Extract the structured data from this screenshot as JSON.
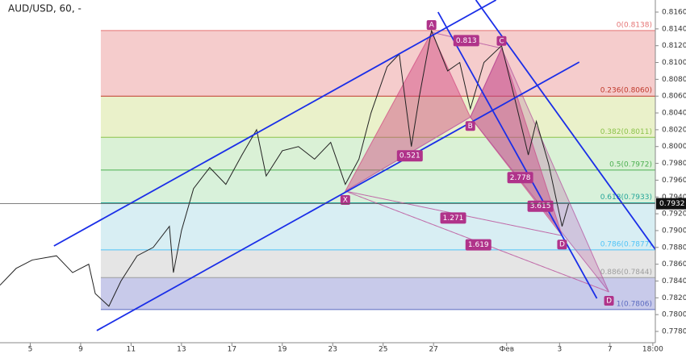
{
  "chart_data": {
    "type": "line",
    "title": "AUD/USD, 60, -",
    "x": [
      0,
      0.32,
      0.64,
      1.12,
      1.44,
      1.76,
      1.89,
      2.16,
      2.4,
      2.72,
      3.04,
      3.36,
      3.44,
      3.6,
      3.84,
      4.16,
      4.48,
      4.8,
      5.09,
      5.28,
      5.6,
      5.92,
      6.24,
      6.56,
      6.85,
      7.12,
      7.36,
      7.68,
      7.92,
      8.16,
      8.32,
      8.56,
      8.88,
      9.12,
      9.33,
      9.6,
      9.95,
      10.24,
      10.48,
      10.64,
      10.88,
      11.15,
      11.28
    ],
    "series": [
      {
        "name": "AUD/USD",
        "color": "#222222",
        "values": [
          0.7835,
          0.7855,
          0.7865,
          0.787,
          0.785,
          0.786,
          0.7825,
          0.781,
          0.784,
          0.787,
          0.788,
          0.7905,
          0.785,
          0.79,
          0.795,
          0.7975,
          0.7955,
          0.799,
          0.802,
          0.7965,
          0.7995,
          0.8,
          0.7985,
          0.8005,
          0.7955,
          0.7985,
          0.804,
          0.8095,
          0.811,
          0.8,
          0.806,
          0.8138,
          0.809,
          0.81,
          0.8045,
          0.81,
          0.812,
          0.805,
          0.799,
          0.803,
          0.798,
          0.7905,
          0.7932
        ]
      }
    ],
    "xlim": [
      0,
      13
    ],
    "ylim": [
      0.778,
      0.816
    ],
    "xticks": [
      {
        "value": 0.6,
        "label": "5"
      },
      {
        "value": 1.6,
        "label": "9"
      },
      {
        "value": 2.6,
        "label": "11"
      },
      {
        "value": 3.6,
        "label": "13"
      },
      {
        "value": 4.6,
        "label": "17"
      },
      {
        "value": 5.6,
        "label": "19"
      },
      {
        "value": 6.6,
        "label": "23"
      },
      {
        "value": 7.6,
        "label": "25"
      },
      {
        "value": 8.6,
        "label": "27"
      },
      {
        "value": 10.05,
        "label": "Фев"
      },
      {
        "value": 11.1,
        "label": "3"
      },
      {
        "value": 12.1,
        "label": "7"
      },
      {
        "value": 12.95,
        "label": "18:00"
      }
    ],
    "yticks": [
      {
        "value": 0.778,
        "label": "0.7780"
      },
      {
        "value": 0.78,
        "label": "0.7800"
      },
      {
        "value": 0.782,
        "label": "0.7820"
      },
      {
        "value": 0.784,
        "label": "0.7840"
      },
      {
        "value": 0.786,
        "label": "0.7860"
      },
      {
        "value": 0.788,
        "label": "0.7880"
      },
      {
        "value": 0.79,
        "label": "0.7900"
      },
      {
        "value": 0.792,
        "label": "0.7920"
      },
      {
        "value": 0.794,
        "label": "0.7940"
      },
      {
        "value": 0.796,
        "label": "0.7960"
      },
      {
        "value": 0.798,
        "label": "0.7980"
      },
      {
        "value": 0.8,
        "label": "0.8000"
      },
      {
        "value": 0.802,
        "label": "0.8020"
      },
      {
        "value": 0.804,
        "label": "0.8040"
      },
      {
        "value": 0.806,
        "label": "0.8060"
      },
      {
        "value": 0.808,
        "label": "0.8080"
      },
      {
        "value": 0.81,
        "label": "0.8100"
      },
      {
        "value": 0.812,
        "label": "0.8120"
      },
      {
        "value": 0.814,
        "label": "0.8140"
      },
      {
        "value": 0.816,
        "label": "0.8160"
      }
    ],
    "last_price": {
      "value": 0.7932,
      "label": "0.7932"
    },
    "fib_start": 2,
    "fib_levels": [
      {
        "label": "0(0.8138)",
        "value": 0.8138,
        "color": "#e57373"
      },
      {
        "label": "0.236(0.8060)",
        "value": 0.806,
        "color": "#c0392b"
      },
      {
        "label": "0.382(0.8011)",
        "value": 0.8011,
        "color": "#8bc34a"
      },
      {
        "label": "0.5(0.7972)",
        "value": 0.7972,
        "color": "#4caf50"
      },
      {
        "label": "0.618(0.7933)",
        "value": 0.7933,
        "color": "#26a69a"
      },
      {
        "label": "0.786(0.7877)",
        "value": 0.7877,
        "color": "#4fc3f7"
      },
      {
        "label": "0.886(0.7844)",
        "value": 0.7844,
        "color": "#9e9e9e"
      },
      {
        "label": "1(0.7806)",
        "value": 0.7806,
        "color": "#5c6bc0"
      }
    ],
    "band_colors": [
      "#f4c7c7",
      "#e8efc4",
      "#d6efd1",
      "#d4efd6",
      "#d4ecf2",
      "#e2e2e2",
      "#c2c4e8"
    ],
    "trendlines": [
      {
        "x": [
          1.07,
          9.84
        ],
        "y": [
          0.78817,
          0.81744
        ]
      },
      {
        "x": [
          1.92,
          11.49
        ],
        "y": [
          0.7781,
          0.81005
        ]
      },
      {
        "x": [
          8.69,
          11.84
        ],
        "y": [
          0.816,
          0.78193
        ]
      },
      {
        "x": [
          9.44,
          13.41
        ],
        "y": [
          0.81744,
          0.78434
        ]
      }
    ],
    "pattern_points": [
      {
        "name": "X",
        "x": 6.85,
        "y": 0.7947
      },
      {
        "name": "A",
        "x": 8.56,
        "y": 0.8136
      },
      {
        "name": "B",
        "x": 9.33,
        "y": 0.8035
      },
      {
        "name": "C",
        "x": 9.95,
        "y": 0.8117
      },
      {
        "name": "D",
        "x": 11.15,
        "y": 0.7894
      },
      {
        "name": "D",
        "x": 12.08,
        "y": 0.7827
      }
    ],
    "ratios": [
      {
        "label": "0.813",
        "x": 9.25,
        "y": 0.8126
      },
      {
        "label": "0.521",
        "x": 8.13,
        "y": 0.7989
      },
      {
        "label": "2.778",
        "x": 10.32,
        "y": 0.7963
      },
      {
        "label": "3.615",
        "x": 10.72,
        "y": 0.7929
      },
      {
        "label": "1.271",
        "x": 8.99,
        "y": 0.7915
      },
      {
        "label": "1.619",
        "x": 9.49,
        "y": 0.7883
      }
    ]
  }
}
